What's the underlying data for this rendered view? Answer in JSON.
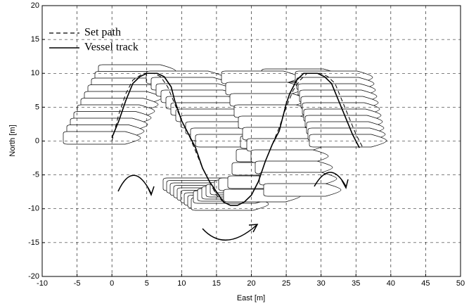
{
  "chart_data": {
    "type": "line",
    "xlabel": "East [m]",
    "ylabel": "North [m]",
    "xlim": [
      -10,
      50
    ],
    "ylim": [
      -20,
      20
    ],
    "xticks": [
      -10,
      -5,
      0,
      5,
      10,
      15,
      20,
      25,
      30,
      35,
      40,
      45,
      50
    ],
    "yticks": [
      -20,
      -15,
      -10,
      -5,
      0,
      5,
      10,
      15,
      20
    ],
    "grid": true,
    "legend": "upper left",
    "series": [
      {
        "name": "Set path",
        "color": "#000000",
        "dash": true,
        "x": [
          0,
          1,
          2,
          3,
          4.5,
          6,
          7,
          8,
          9,
          10,
          11,
          12,
          13,
          14,
          15,
          16,
          17,
          18,
          19,
          20,
          21,
          22,
          23,
          24,
          25,
          26,
          27,
          28,
          30,
          31,
          32,
          33,
          34,
          35,
          36
        ],
        "values": [
          0,
          4,
          7,
          9,
          10,
          10,
          9.5,
          8,
          5.5,
          3,
          1,
          -1.5,
          -4,
          -6,
          -8,
          -9,
          -9.5,
          -9.5,
          -9,
          -8,
          -6,
          -3,
          -0.5,
          2,
          5,
          7.5,
          9,
          10,
          10,
          9.5,
          8.5,
          6,
          3.5,
          1,
          -1
        ]
      },
      {
        "name": "Vessel track",
        "color": "#000000",
        "dash": false,
        "x": [
          0,
          1,
          2,
          3,
          4,
          5,
          6.5,
          7.5,
          8.5,
          9,
          10,
          11,
          12,
          13,
          14,
          15,
          16,
          17,
          18,
          19,
          20,
          21,
          22,
          23,
          24,
          24.5,
          25,
          25.5,
          26.5,
          27.5,
          29.5,
          30.5,
          31.5,
          32.5,
          33.5,
          34.5,
          35.5
        ],
        "values": [
          0.5,
          3,
          6,
          8.5,
          9.5,
          10,
          10,
          9.5,
          8,
          6,
          3,
          1,
          -1,
          -4,
          -6,
          -7.5,
          -9,
          -9.5,
          -9.5,
          -9,
          -8,
          -6,
          -3,
          -0.5,
          1.5,
          3.5,
          5.5,
          7,
          9,
          10,
          10,
          9.5,
          8.5,
          6,
          3.5,
          1,
          -1
        ]
      }
    ]
  }
}
